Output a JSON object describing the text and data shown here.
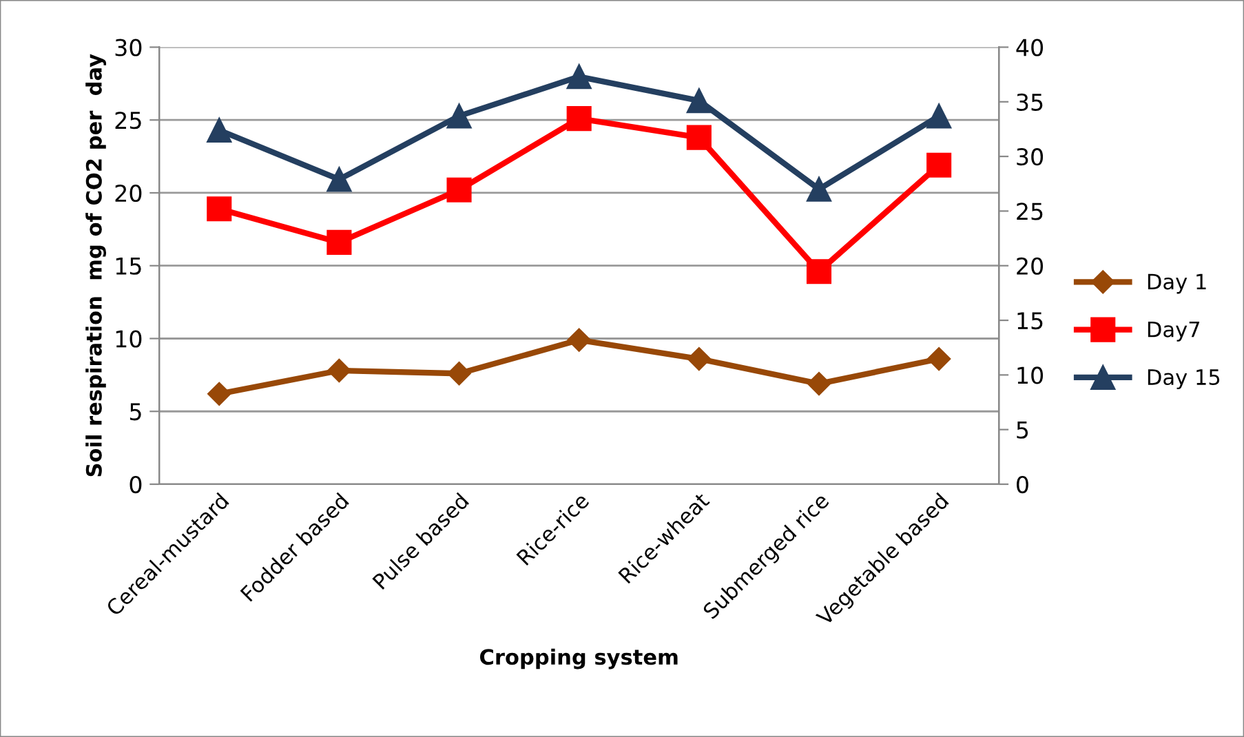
{
  "chart_data": {
    "type": "line",
    "xlabel": "Cropping system",
    "ylabel": "Soil respiration  mg of CO2 per  day",
    "categories": [
      "Cereal-mustard",
      "Fodder based",
      "Pulse based",
      "Rice-rice",
      "Rice-wheat",
      "Submerged rice",
      "Vegetable based"
    ],
    "series": [
      {
        "name": "Day 1",
        "color": "#984807",
        "marker": "diamond",
        "values": [
          6.2,
          7.8,
          7.6,
          9.9,
          8.6,
          6.9,
          8.6
        ]
      },
      {
        "name": "Day7",
        "color": "#ff0000",
        "marker": "square",
        "values": [
          18.9,
          16.6,
          20.2,
          25.1,
          23.8,
          14.6,
          21.9
        ]
      },
      {
        "name": "Day 15",
        "color": "#243f60",
        "marker": "triangle",
        "axis": "y2",
        "values": [
          32.4,
          27.9,
          33.7,
          37.3,
          35.1,
          27.0,
          33.7
        ]
      }
    ],
    "ylim": [
      0,
      30
    ],
    "yticks": [
      0,
      5,
      10,
      15,
      20,
      25,
      30
    ],
    "y2lim": [
      0,
      40
    ],
    "y2ticks": [
      0,
      5,
      10,
      15,
      20,
      25,
      30,
      35,
      40
    ],
    "grid": "y",
    "legend": "right",
    "line_style": "solid"
  }
}
